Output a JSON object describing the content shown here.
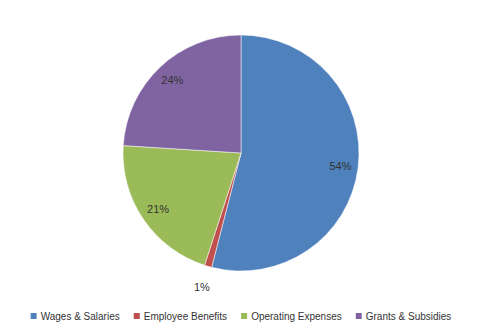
{
  "chart_data": {
    "type": "pie",
    "categories": [
      "Wages & Salaries",
      "Employee Benefits",
      "Operating Expenses",
      "Grants & Subsidies"
    ],
    "values": [
      54,
      1,
      21,
      24
    ],
    "value_labels": [
      "54%",
      "1%",
      "21%",
      "24%"
    ],
    "colors": [
      "#4f81bd",
      "#c0504d",
      "#9bbb59",
      "#8064a2"
    ],
    "data_labels": true,
    "legend": "bottom"
  }
}
